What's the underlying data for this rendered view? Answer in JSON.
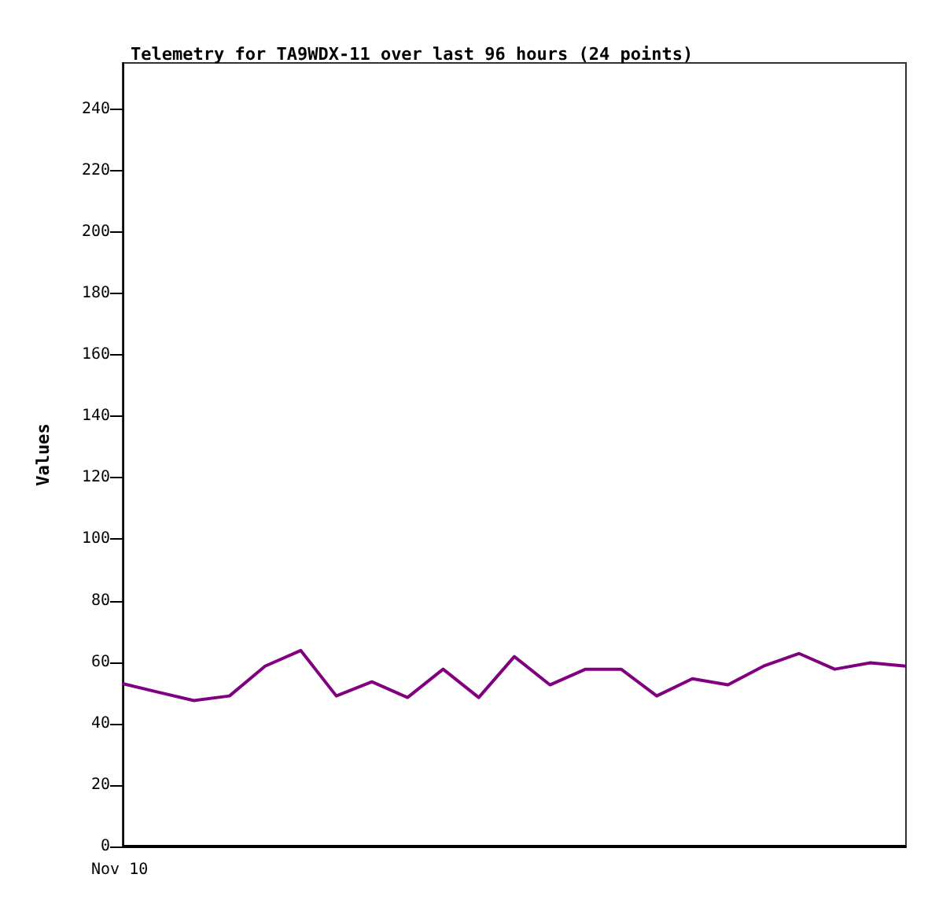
{
  "chart_data": {
    "type": "line",
    "title": "Telemetry for TA9WDX-11 over last 96 hours (24 points)",
    "ylabel": "Values",
    "annotations": [
      "Nov 10"
    ],
    "categories": [
      null,
      null,
      null,
      null,
      null,
      null,
      null,
      null,
      null,
      null,
      null,
      null,
      null,
      null,
      null,
      null,
      null,
      null,
      null,
      null,
      null,
      null,
      null
    ],
    "ylim": [
      0,
      255
    ],
    "yticks": [
      0,
      20,
      40,
      60,
      80,
      100,
      120,
      140,
      160,
      180,
      200,
      220,
      240
    ],
    "marker": "none",
    "line_style": "solid",
    "series": [
      {
        "color": "#800080",
        "values": [
          53,
          50.2,
          47.5,
          49,
          58.7,
          63.8,
          49,
          53.6,
          48.5,
          57.7,
          48.5,
          61.8,
          52.6,
          57.7,
          57.7,
          49,
          54.6,
          52.6,
          58.7,
          62.8,
          57.7,
          59.8,
          58.7
        ]
      },
      {
        "color": "#000000",
        "values": [
          0,
          0,
          0,
          0,
          0,
          0,
          0,
          0,
          0,
          0,
          0,
          0,
          0,
          0,
          0,
          0,
          0,
          0,
          0,
          0,
          0,
          0,
          0
        ]
      }
    ]
  }
}
